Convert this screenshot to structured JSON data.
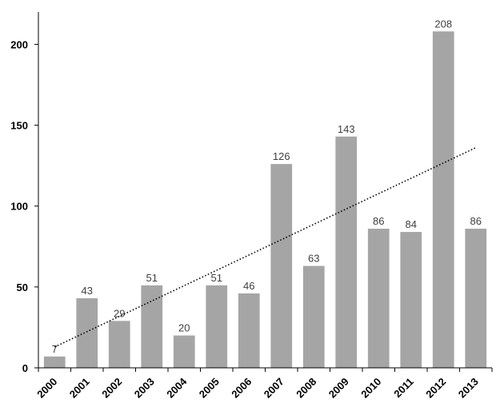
{
  "chart_data": {
    "type": "bar",
    "title": "",
    "xlabel": "",
    "ylabel": "",
    "categories": [
      "2000",
      "2001",
      "2002",
      "2003",
      "2004",
      "2005",
      "2006",
      "2007",
      "2008",
      "2009",
      "2010",
      "2011",
      "2012",
      "2013"
    ],
    "values": [
      7,
      43,
      29,
      51,
      20,
      51,
      46,
      126,
      63,
      143,
      86,
      84,
      208,
      86
    ],
    "ylim": [
      0,
      220
    ],
    "yticks": [
      0,
      50,
      100,
      150,
      200
    ],
    "grid": false,
    "legend": "none",
    "trendline": {
      "type": "linear",
      "style": "dotted"
    },
    "colors": {
      "bar": "#a5a5a5",
      "axis": "#000000",
      "trend": "#000000",
      "label": "#404040"
    }
  }
}
